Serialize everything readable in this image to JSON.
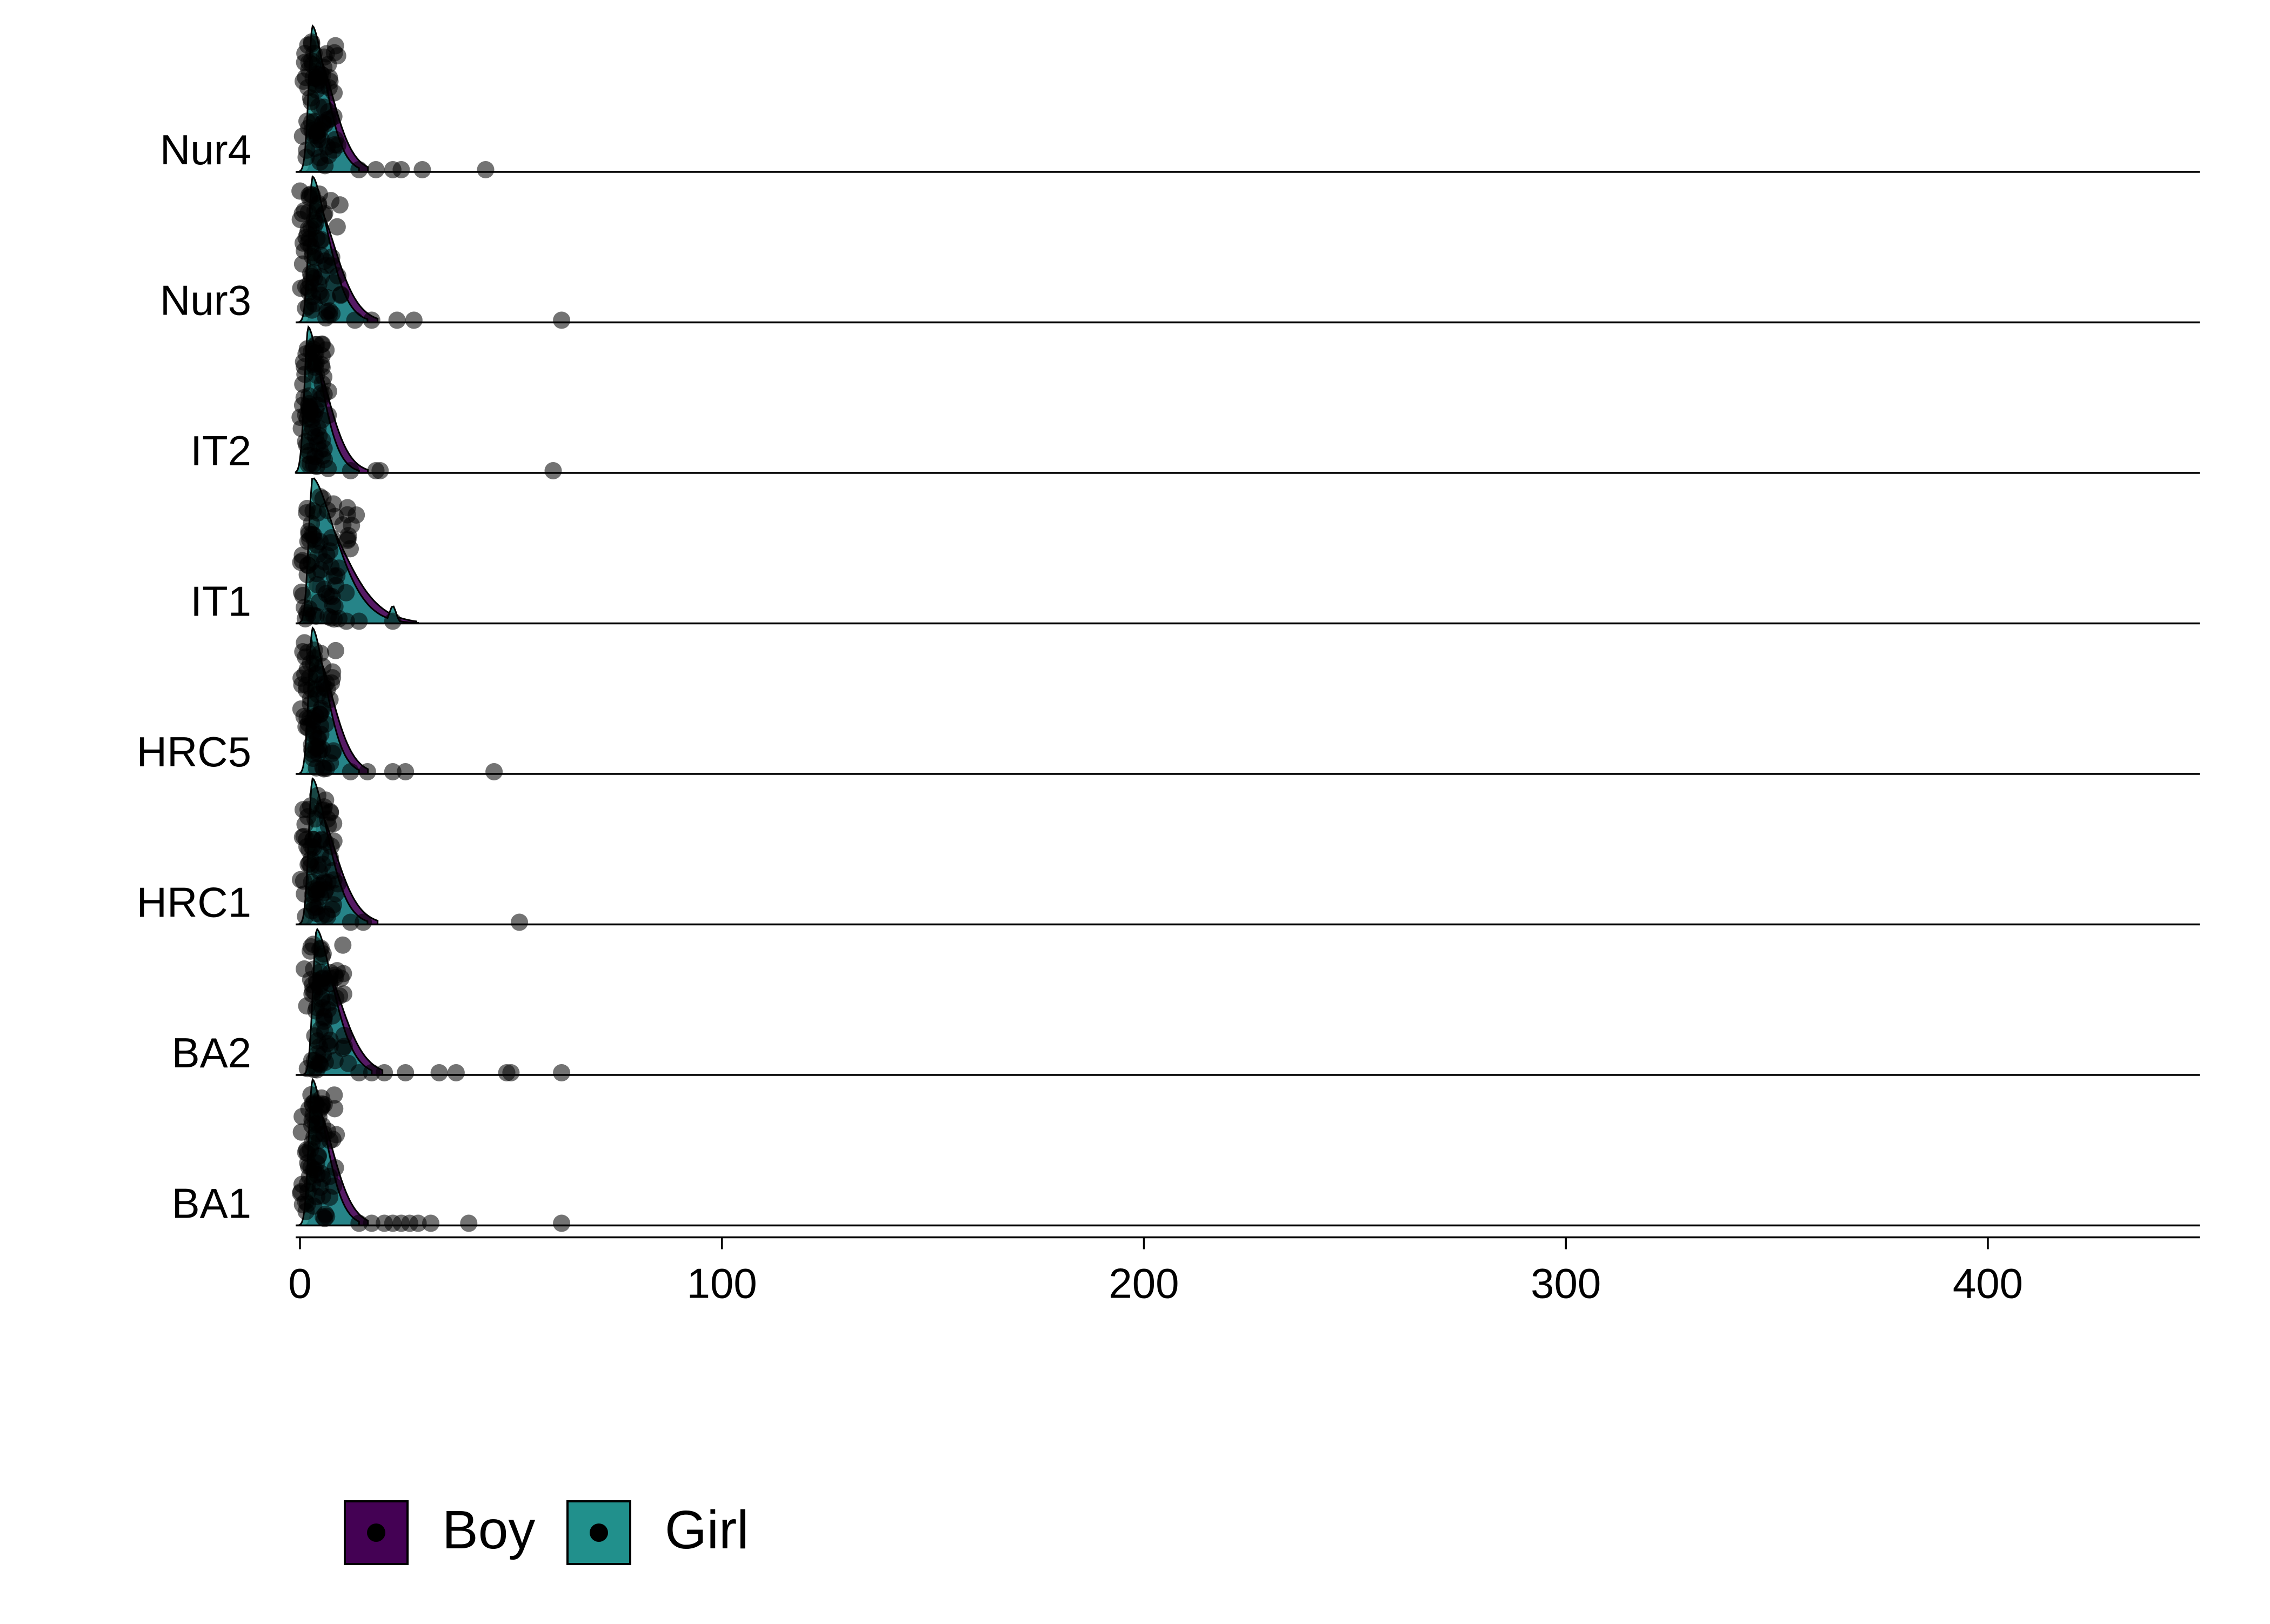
{
  "chart_data": {
    "type": "ridgeline",
    "title": "",
    "xlabel": "",
    "ylabel": "",
    "categories": [
      "BA1",
      "BA2",
      "HRC1",
      "HRC5",
      "IT1",
      "IT2",
      "Nur3",
      "Nur4"
    ],
    "xlim": [
      -5,
      450
    ],
    "xticks": [
      0,
      100,
      200,
      300,
      400
    ],
    "grid": false,
    "legend_position": "bottom-left",
    "series": [
      {
        "name": "Boy",
        "color": "#440154"
      },
      {
        "name": "Girl",
        "color": "#21908C"
      }
    ],
    "points_outliers": {
      "BA1": [
        14,
        17,
        20,
        22,
        24,
        26,
        28,
        31,
        40,
        62
      ],
      "BA2": [
        14,
        17,
        20,
        25,
        33,
        37,
        49,
        50,
        62
      ],
      "HRC1": [
        12,
        15,
        52
      ],
      "HRC5": [
        12,
        16,
        22,
        25,
        46
      ],
      "IT1": [
        11,
        14,
        22
      ],
      "IT2": [
        12,
        18,
        19,
        60
      ],
      "Nur3": [
        13,
        17,
        23,
        27,
        62
      ],
      "Nur4": [
        14,
        18,
        22,
        24,
        29,
        44
      ]
    },
    "density_peak_x": {
      "BA1": 3,
      "BA2": 4,
      "HRC1": 3,
      "HRC5": 3,
      "IT1": 3,
      "IT2": 2,
      "Nur3": 3,
      "Nur4": 3
    },
    "density_extent_x": {
      "BA1": 14,
      "BA2": 17,
      "HRC1": 16,
      "HRC5": 14,
      "IT1": 24,
      "IT2": 14,
      "Nur3": 16,
      "Nur4": 14
    },
    "point_color": "#000000",
    "point_opacity": 0.55
  },
  "legend": {
    "items": [
      {
        "label": "Boy",
        "color": "#440154"
      },
      {
        "label": "Girl",
        "color": "#21908C"
      }
    ]
  }
}
